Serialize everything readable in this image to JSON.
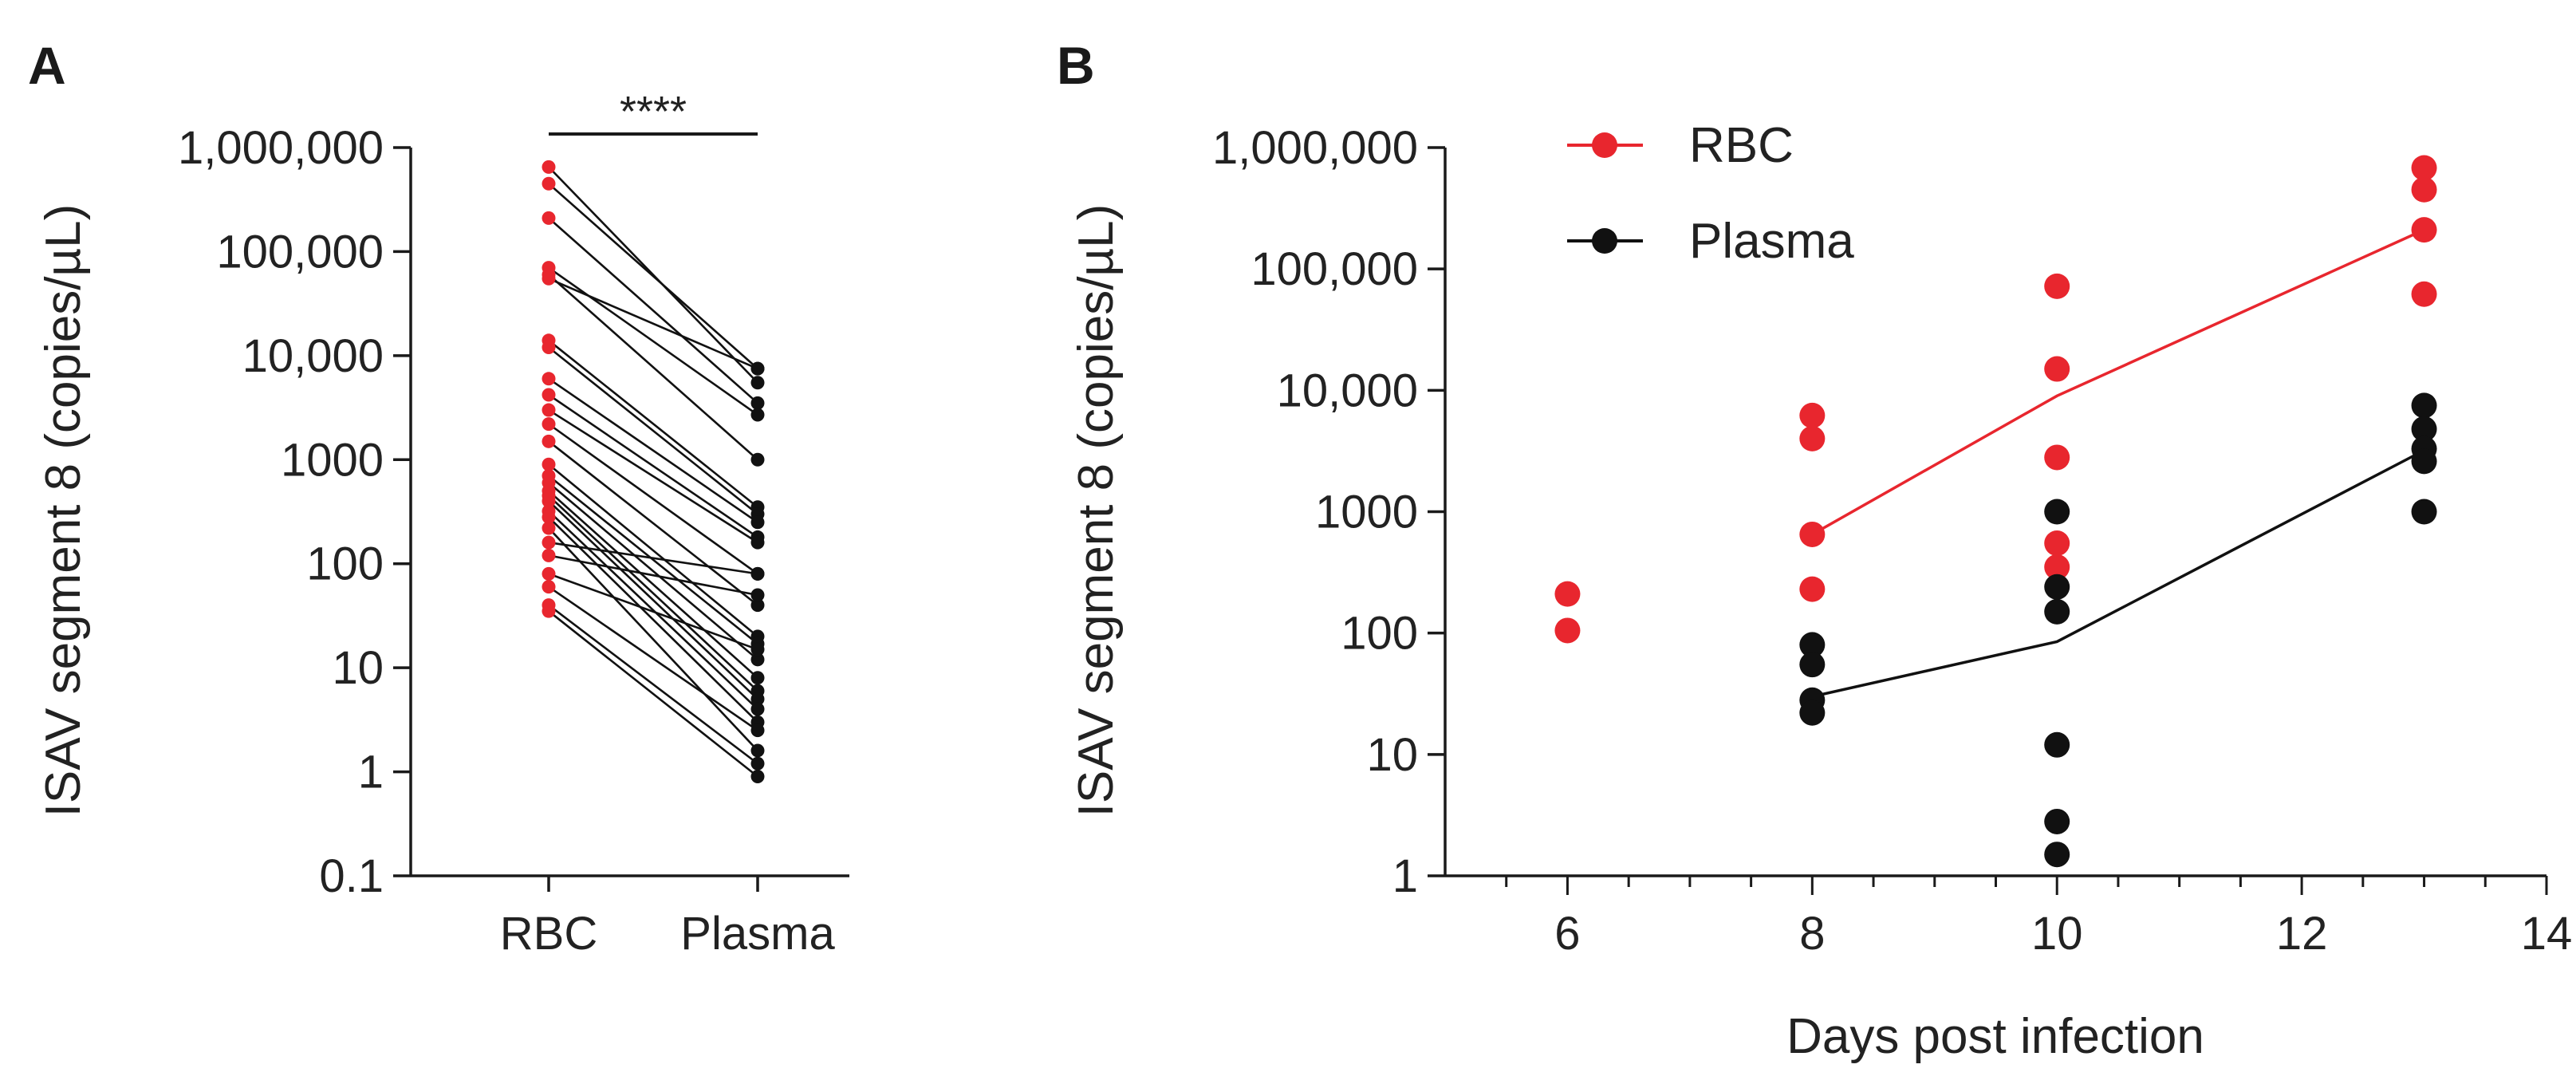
{
  "chart_data": [
    {
      "panel": "A",
      "type": "scatter",
      "subtype": "paired",
      "ylabel": "ISAV segment 8 (copies/µL)",
      "yscale": "log",
      "ylim": [
        0.1,
        1000000
      ],
      "yticks": [
        0.1,
        1,
        10,
        100,
        1000,
        10000,
        100000,
        1000000
      ],
      "ytick_labels": [
        "0.1",
        "1",
        "10",
        "100",
        "1000",
        "10,000",
        "100,000",
        "1,000,000"
      ],
      "categories": [
        "RBC",
        "Plasma"
      ],
      "significance": "****",
      "colors": {
        "RBC": "#e8262e",
        "Plasma": "#111111",
        "line": "#111111"
      },
      "pairs": [
        [
          650000,
          5500
        ],
        [
          450000,
          7500
        ],
        [
          210000,
          3500
        ],
        [
          70000,
          2700
        ],
        [
          60000,
          1000
        ],
        [
          55000,
          7500
        ],
        [
          14000,
          350
        ],
        [
          12000,
          300
        ],
        [
          6000,
          250
        ],
        [
          4200,
          180
        ],
        [
          3000,
          160
        ],
        [
          2200,
          80
        ],
        [
          1500,
          40
        ],
        [
          900,
          20
        ],
        [
          700,
          17
        ],
        [
          600,
          12
        ],
        [
          500,
          8
        ],
        [
          450,
          6
        ],
        [
          400,
          5
        ],
        [
          320,
          4
        ],
        [
          280,
          3
        ],
        [
          220,
          1.6
        ],
        [
          160,
          80
        ],
        [
          120,
          50
        ],
        [
          80,
          15
        ],
        [
          60,
          2.5
        ],
        [
          40,
          1.2
        ],
        [
          35,
          0.9
        ]
      ]
    },
    {
      "panel": "B",
      "type": "scatter",
      "xlabel": "Days post infection",
      "ylabel": "ISAV segment 8 (copies/µL)",
      "xlim": [
        5,
        14
      ],
      "xticks": [
        6,
        8,
        10,
        12,
        14
      ],
      "yscale": "log",
      "ylim": [
        1,
        1000000
      ],
      "yticks": [
        1,
        10,
        100,
        1000,
        10000,
        100000,
        1000000
      ],
      "ytick_labels": [
        "1",
        "10",
        "100",
        "1000",
        "10,000",
        "100,000",
        "1,000,000"
      ],
      "legend_position": "top-left",
      "series": [
        {
          "name": "RBC",
          "color": "#e8262e",
          "points": [
            [
              6,
              210
            ],
            [
              6,
              105
            ],
            [
              8,
              6200
            ],
            [
              8,
              4000
            ],
            [
              8,
              650
            ],
            [
              8,
              230
            ],
            [
              10,
              72000
            ],
            [
              10,
              15000
            ],
            [
              10,
              2800
            ],
            [
              10,
              550
            ],
            [
              10,
              350
            ],
            [
              13,
              680000
            ],
            [
              13,
              450000
            ],
            [
              13,
              210000
            ],
            [
              13,
              62000
            ]
          ],
          "mean_line": [
            [
              8,
              650
            ],
            [
              10,
              9000
            ],
            [
              13,
              210000
            ]
          ]
        },
        {
          "name": "Plasma",
          "color": "#111111",
          "points": [
            [
              8,
              80
            ],
            [
              8,
              55
            ],
            [
              8,
              28
            ],
            [
              8,
              22
            ],
            [
              10,
              1000
            ],
            [
              10,
              240
            ],
            [
              10,
              150
            ],
            [
              10,
              12
            ],
            [
              10,
              2.8
            ],
            [
              10,
              1.5
            ],
            [
              13,
              7500
            ],
            [
              13,
              4800
            ],
            [
              13,
              3300
            ],
            [
              13,
              2600
            ],
            [
              13,
              1000
            ]
          ],
          "mean_line": [
            [
              8,
              30
            ],
            [
              10,
              85
            ],
            [
              13,
              3200
            ]
          ]
        }
      ]
    }
  ],
  "panel_labels": {
    "a": "A",
    "b": "B"
  }
}
